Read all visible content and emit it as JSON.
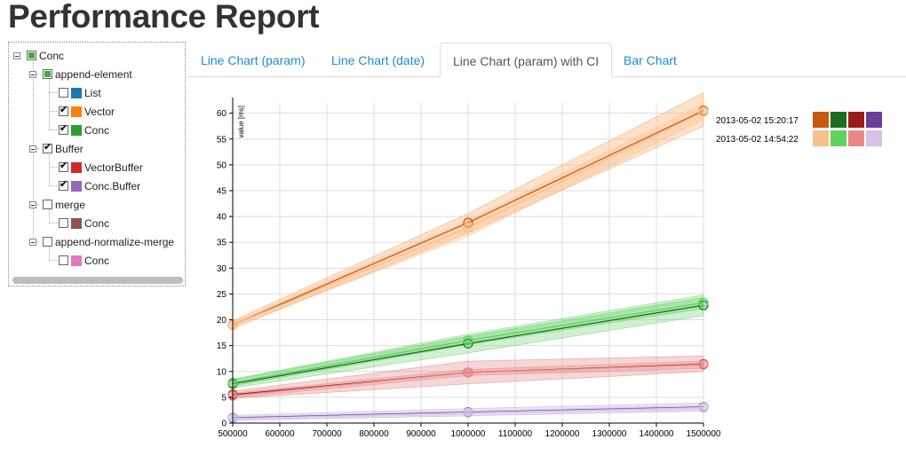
{
  "page": {
    "title": "Performance Report"
  },
  "tree": [
    {
      "label": "Conc",
      "level": 0,
      "check": "partial",
      "expander": true
    },
    {
      "label": "append-element",
      "level": 1,
      "check": "partial",
      "expander": true
    },
    {
      "label": "List",
      "level": 2,
      "check": "off",
      "swatch": "#1f77b4"
    },
    {
      "label": "Vector",
      "level": 2,
      "check": "on",
      "swatch": "#ff7f0e"
    },
    {
      "label": "Conc",
      "level": 2,
      "check": "on",
      "swatch": "#2ca02c"
    },
    {
      "label": "Buffer",
      "level": 1,
      "check": "on",
      "expander": true
    },
    {
      "label": "VectorBuffer",
      "level": 2,
      "check": "on",
      "swatch": "#d62728"
    },
    {
      "label": "Conc.Buffer",
      "level": 2,
      "check": "on",
      "swatch": "#9467bd"
    },
    {
      "label": "merge",
      "level": 1,
      "check": "off",
      "expander": true
    },
    {
      "label": "Conc",
      "level": 2,
      "check": "off",
      "swatch": "#8c564b"
    },
    {
      "label": "append-normalize-merge",
      "level": 1,
      "check": "off",
      "expander": true
    },
    {
      "label": "Conc",
      "level": 2,
      "check": "off",
      "swatch": "#e377c2"
    }
  ],
  "tabs": [
    {
      "label": "Line Chart (param)",
      "active": false
    },
    {
      "label": "Line Chart (date)",
      "active": false
    },
    {
      "label": "Line Chart (param) with CI",
      "active": true
    },
    {
      "label": "Bar Chart",
      "active": false
    }
  ],
  "chart_data": {
    "type": "line",
    "title": "",
    "xlabel": "",
    "ylabel": "value [ms]",
    "x": [
      500000,
      1000000,
      1500000
    ],
    "xticks": [
      500000,
      600000,
      700000,
      800000,
      900000,
      1000000,
      1100000,
      1200000,
      1300000,
      1400000,
      1500000
    ],
    "yticks": [
      0,
      5,
      10,
      15,
      20,
      25,
      30,
      35,
      40,
      45,
      50,
      55,
      60
    ],
    "xlim": [
      500000,
      1500000
    ],
    "ylim": [
      0,
      62
    ],
    "grid": true,
    "legend_position": "top-right",
    "legend": [
      {
        "label": "2013-05-02 15:20:17",
        "colors": [
          "#c55a11",
          "#1f6d1f",
          "#9b1c1c",
          "#6a3d9a"
        ]
      },
      {
        "label": "2013-05-02 14:54:22",
        "colors": [
          "#fbbf8a",
          "#5fd35f",
          "#ec8787",
          "#d4c2e8"
        ]
      }
    ],
    "series": [
      {
        "run": "2013-05-02 15:20:17",
        "color": "#c55a11",
        "band": "#f6a96a",
        "values": [
          19.0,
          38.8,
          60.5
        ],
        "lower": [
          18.3,
          36.8,
          57.5
        ],
        "upper": [
          19.8,
          40.6,
          64.0
        ]
      },
      {
        "run": "2013-05-02 14:54:22",
        "color": "#fbbf8a",
        "band": "#fbbf8a",
        "values": [
          19.0,
          37.8,
          60.3
        ],
        "lower": [
          18.6,
          36.2,
          58.8
        ],
        "upper": [
          19.5,
          39.2,
          61.8
        ]
      },
      {
        "run": "2013-05-02 15:20:17",
        "color": "#1f6d1f",
        "band": "#7bd07b",
        "values": [
          7.6,
          15.4,
          22.8
        ],
        "lower": [
          6.8,
          13.6,
          20.8
        ],
        "upper": [
          8.5,
          17.2,
          24.8
        ]
      },
      {
        "run": "2013-05-02 14:54:22",
        "color": "#5fd35f",
        "band": "#5fd35f",
        "values": [
          7.8,
          16.0,
          23.3
        ],
        "lower": [
          7.2,
          15.2,
          22.2
        ],
        "upper": [
          8.4,
          16.8,
          24.3
        ]
      },
      {
        "run": "2013-05-02 15:20:17",
        "color": "#9b1c1c",
        "band": "#e38b8b",
        "values": [
          5.5,
          9.8,
          11.4
        ],
        "lower": [
          4.8,
          7.6,
          10.0
        ],
        "upper": [
          6.2,
          12.0,
          13.0
        ]
      },
      {
        "run": "2013-05-02 14:54:22",
        "color": "#ec8787",
        "band": "#ec8787",
        "values": [
          5.3,
          9.8,
          11.3
        ],
        "lower": [
          4.9,
          9.2,
          10.6
        ],
        "upper": [
          5.8,
          10.4,
          12.0
        ]
      },
      {
        "run": "2013-05-02 15:20:17",
        "color": "#6a3d9a",
        "band": "#c5b0dd",
        "values": [
          1.0,
          2.1,
          3.1
        ],
        "lower": [
          0.5,
          1.4,
          2.3
        ],
        "upper": [
          1.5,
          2.8,
          3.9
        ]
      },
      {
        "run": "2013-05-02 14:54:22",
        "color": "#d4c2e8",
        "band": "#d4c2e8",
        "values": [
          0.9,
          2.0,
          3.0
        ],
        "lower": [
          0.6,
          1.7,
          2.6
        ],
        "upper": [
          1.2,
          2.3,
          3.4
        ]
      }
    ]
  }
}
